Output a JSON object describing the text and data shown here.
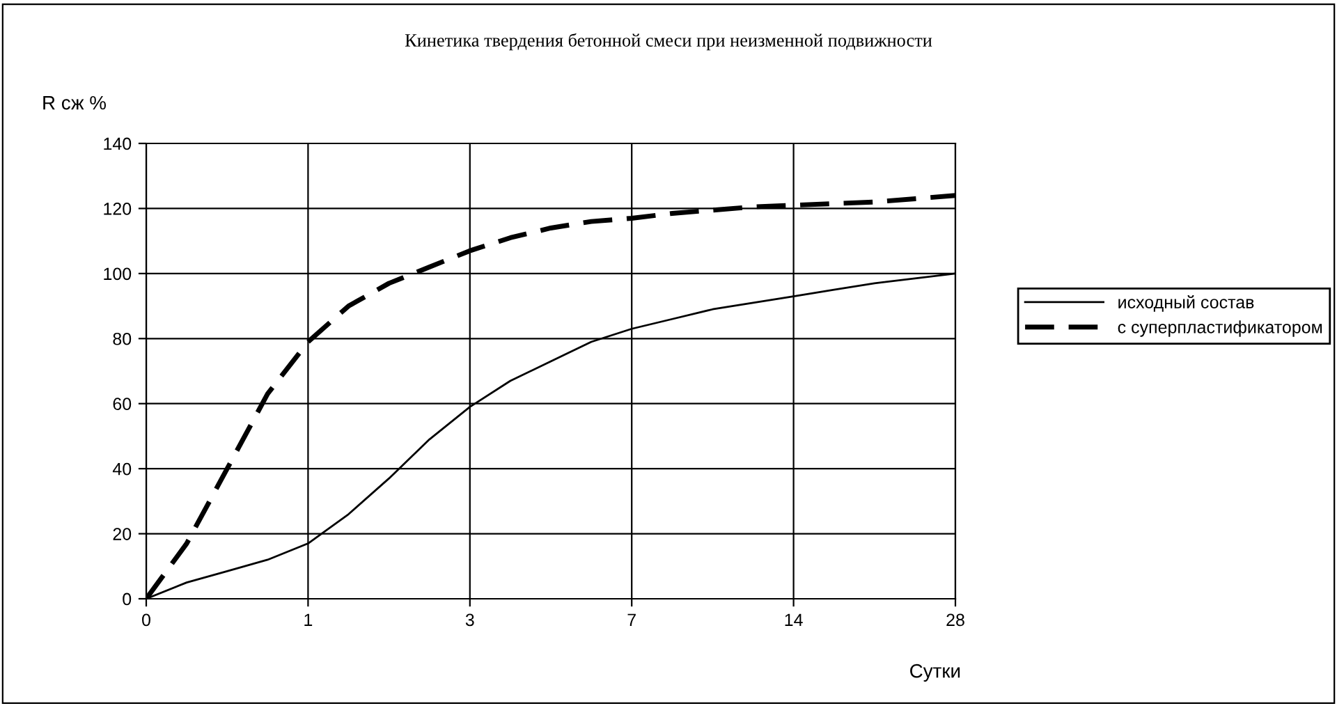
{
  "chart_data": {
    "type": "line",
    "title": "Кинетика твердения бетонной смеси при неизменной подвижности",
    "xlabel": "Сутки",
    "ylabel": "R сж %",
    "categories": [
      "0",
      null,
      null,
      null,
      "1",
      null,
      null,
      null,
      "3",
      null,
      null,
      null,
      "7",
      null,
      null,
      null,
      "14",
      null,
      null,
      null,
      "28"
    ],
    "ylim": [
      0,
      140
    ],
    "yticks": [
      0,
      20,
      40,
      60,
      80,
      100,
      120,
      140
    ],
    "grid": true,
    "legend": "right",
    "marker": "none",
    "series": [
      {
        "name": "исходный состав",
        "color": "#000000",
        "line_style": "solid",
        "values": [
          0,
          5,
          8.5,
          12,
          17,
          26,
          37,
          49,
          59,
          67,
          73,
          79,
          83,
          86,
          89,
          91,
          93,
          95,
          97,
          98.5,
          100
        ]
      },
      {
        "name": "с суперпластификатором",
        "color": "#000000",
        "line_style": "dashed",
        "values": [
          0,
          17,
          40,
          63,
          79,
          90,
          97,
          102,
          107,
          111,
          114,
          116,
          117,
          118.5,
          119.5,
          120.5,
          121,
          121.5,
          122,
          123,
          124
        ]
      }
    ]
  }
}
